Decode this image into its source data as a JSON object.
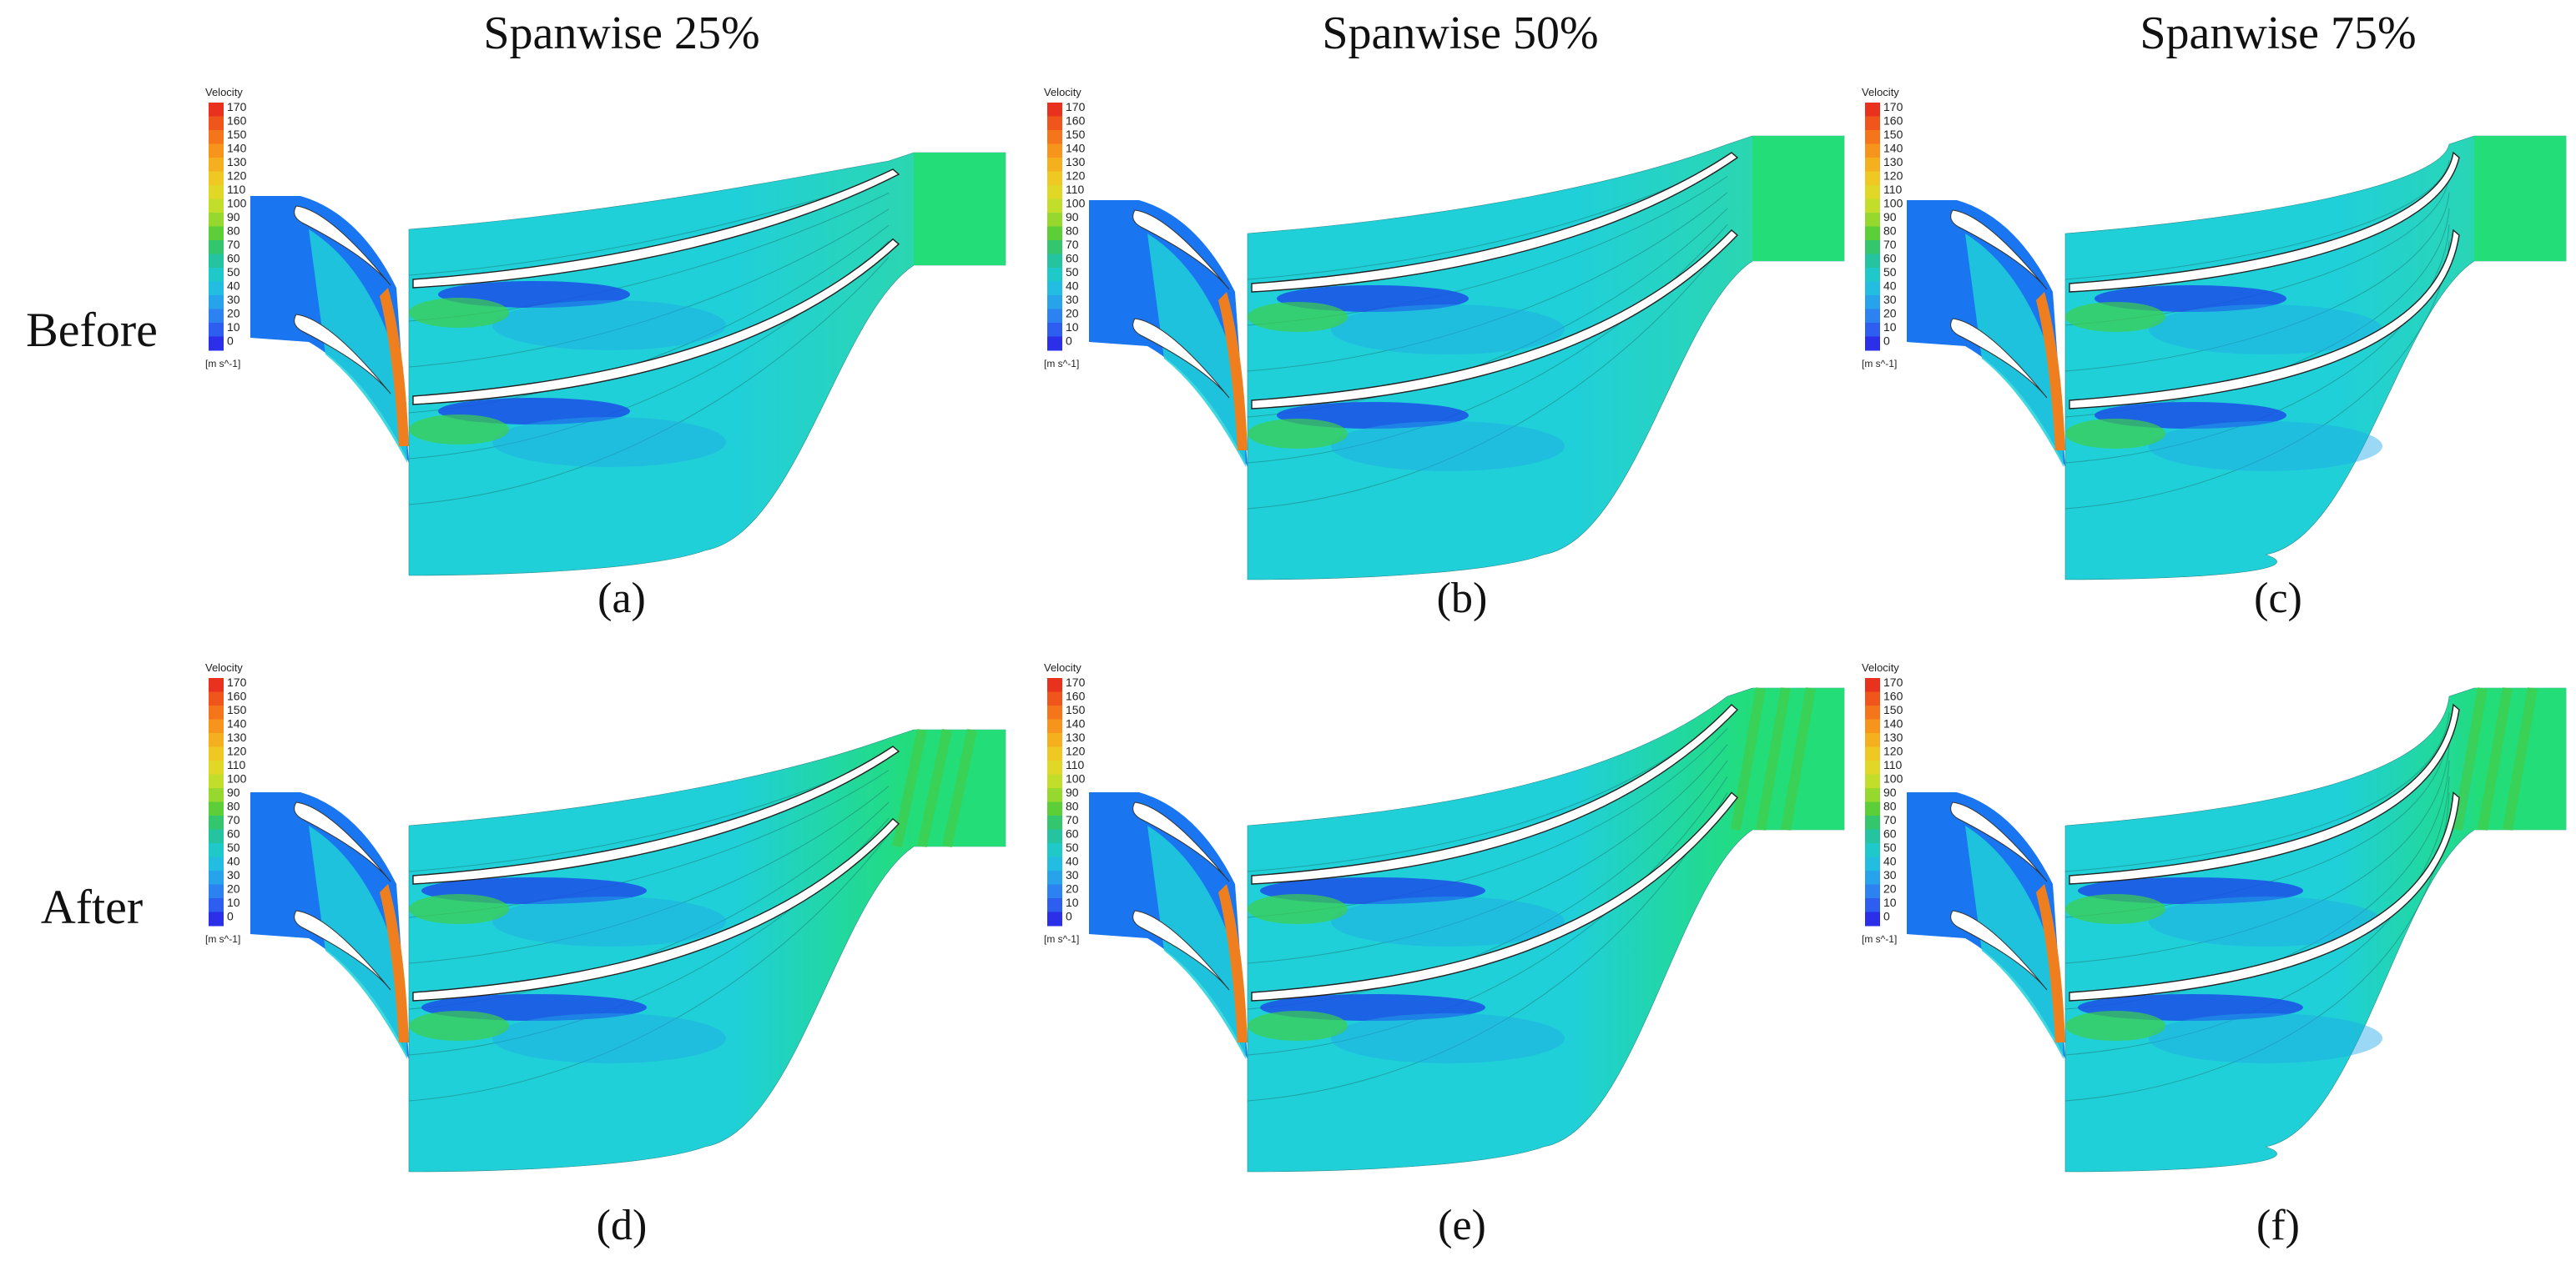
{
  "columns": [
    {
      "title": "Spanwise 25%"
    },
    {
      "title": "Spanwise 50%"
    },
    {
      "title": "Spanwise 75%"
    }
  ],
  "rows": [
    {
      "label": "Before"
    },
    {
      "label": "After"
    }
  ],
  "panels": [
    {
      "caption": "(a)",
      "span": "25%",
      "state": "Before"
    },
    {
      "caption": "(b)",
      "span": "50%",
      "state": "Before"
    },
    {
      "caption": "(c)",
      "span": "75%",
      "state": "Before"
    },
    {
      "caption": "(d)",
      "span": "25%",
      "state": "After"
    },
    {
      "caption": "(e)",
      "span": "50%",
      "state": "After"
    },
    {
      "caption": "(f)",
      "span": "75%",
      "state": "After"
    }
  ],
  "colorbar": {
    "title": "Velocity",
    "unit": "[m s^-1]",
    "ticks": [
      "170",
      "160",
      "150",
      "140",
      "130",
      "120",
      "110",
      "100",
      "90",
      "80",
      "70",
      "60",
      "50",
      "40",
      "30",
      "20",
      "10",
      "0"
    ],
    "colors": [
      "#e8321e",
      "#f0561c",
      "#f5751a",
      "#f6941c",
      "#f5b01f",
      "#efc823",
      "#e0d727",
      "#c2dd2a",
      "#96d82e",
      "#5ccf38",
      "#34c66c",
      "#24c4a0",
      "#1fc9c9",
      "#22bde0",
      "#27a3ec",
      "#2c82f0",
      "#2e5ef0",
      "#2b2fe8"
    ]
  },
  "colors": {
    "inlet": "#1976f0",
    "passage": "#20d0d8",
    "outlet": "#22dd78",
    "low_velocity": "#1c4fe6",
    "high_velocity": "#ef7f1e",
    "blade": "#ffffff"
  }
}
